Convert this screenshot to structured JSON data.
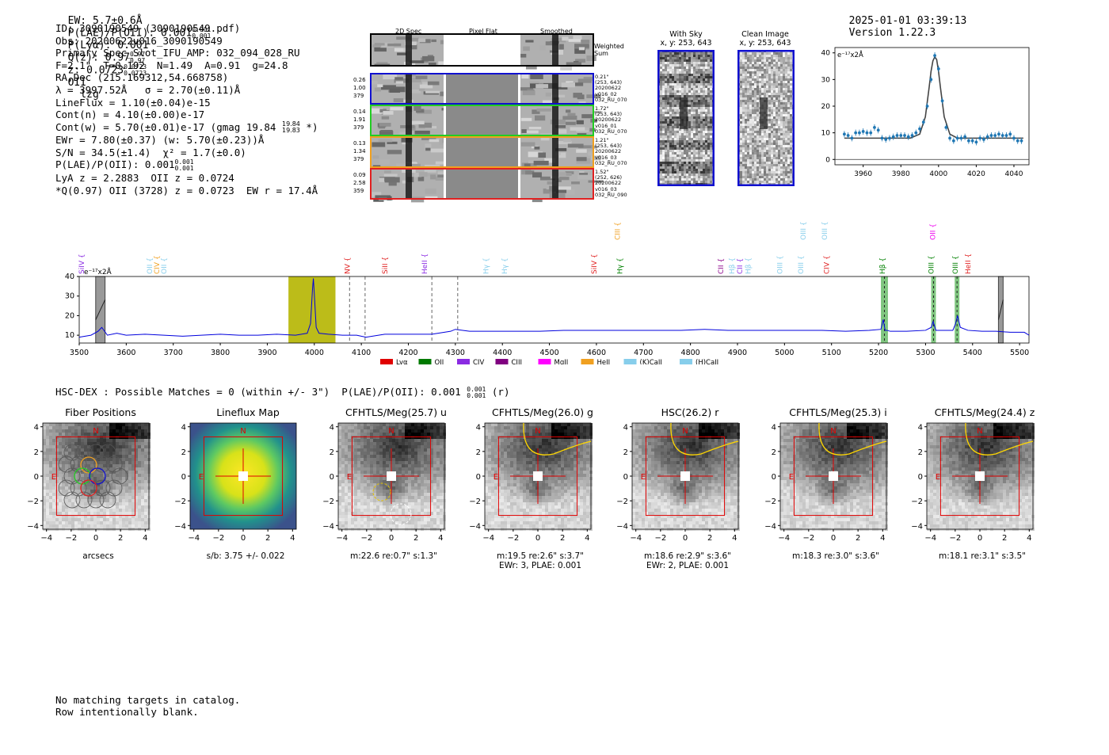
{
  "header": {
    "ew": "EW: 5.7±0.6Å",
    "plae": "P(LAE)/P(OII): 0.001",
    "plae_hi": "0.001",
    "plae_lo": "0.001",
    "plya": "P(Lyα): 0.001",
    "qz": "Q(z): 0.97",
    "qz_hi": "0.97",
    "qz_lo": "0.97",
    "z": "z: 0.0723",
    "z_hi": "0.0723",
    "z_lo": "0.0723",
    "z_line": "OII",
    "user": "lzg",
    "timestamp": "2025-01-01 03:39:13",
    "version": "Version 1.22.3"
  },
  "info": {
    "lines": [
      "ID: 3090190549 (3090190549.pdf)",
      "Obs: 20200622v016_3090190549",
      "Primary Spec_Slot_IFU_AMP: 032_094_028_RU",
      "F=2.1\"  T=0.192  N=1.49  A=0.91  g=24.8",
      "RA,Dec (215.169312,54.668758)",
      "λ = 3997.52Å   σ = 2.70(±0.11)Å",
      "LineFlux = 1.10(±0.04)e-15",
      "Cont(n) = 4.10(±0.00)e-17",
      "Cont(w) = 5.70(±0.01)e-17 (gmag 19.84",
      "EWr = 7.80(±0.37) (w: 5.70(±0.23))Å",
      "S/N = 34.5(±1.4)  χ² = 1.7(±0.0)",
      "P(LAE)/P(OII): 0.001",
      "LyA z = 2.2883  OII z = 0.0724",
      "*Q(0.97) OII (3728) z = 0.0723  EW r = 17.4Å"
    ],
    "gmag_hi": "19.84",
    "gmag_lo": "19.83",
    "gmag_close": "*)",
    "plae_hi": "0.001",
    "plae_lo": "0.001"
  },
  "fiber_panel": {
    "col_headers": [
      "2D Spec",
      "Pixel Flat",
      "Smoothed"
    ],
    "weighted_sum_label": "Weighted\nSum",
    "rows": [
      {
        "left": [
          "0.26",
          "1.00",
          "379"
        ],
        "right": [
          "0.21\"",
          "(253, 643)",
          "20200622",
          "v016_02",
          "032_RU_070"
        ],
        "color": "#1010d0"
      },
      {
        "left": [
          "0.14",
          "1.91",
          "379"
        ],
        "right": [
          "1.72\"",
          "(253, 643)",
          "20200622",
          "v016_01",
          "032_RU_070"
        ],
        "color": "#22cc22"
      },
      {
        "left": [
          "0.13",
          "1.34",
          "379"
        ],
        "right": [
          "1.21\"",
          "(253, 643)",
          "20200622",
          "v016_03",
          "032_RU_070"
        ],
        "color": "#f0a020"
      },
      {
        "left": [
          "0.09",
          "2.58",
          "359"
        ],
        "right": [
          "1.52\"",
          "(252, 626)",
          "20200622",
          "v016_03",
          "032_RU_090"
        ],
        "color": "#e02020"
      }
    ]
  },
  "sky_panels": {
    "with_sky": {
      "title": "With Sky",
      "coords": "x, y: 253, 643"
    },
    "clean": {
      "title": "Clean Image",
      "coords": "x, y: 253, 643"
    }
  },
  "line_fit": {
    "ylabel": "e⁻¹⁷x2Å",
    "x_ticks": [
      "3960",
      "3980",
      "4000",
      "4020",
      "4040"
    ],
    "y_ticks": [
      "0",
      "10",
      "20",
      "30",
      "40"
    ]
  },
  "spectrum": {
    "ylabel": "e⁻¹⁷x2Å",
    "x_ticks": [
      "3500",
      "3600",
      "3700",
      "3800",
      "3900",
      "4000",
      "4100",
      "4200",
      "4300",
      "4400",
      "4500",
      "4600",
      "4700",
      "4800",
      "4900",
      "5000",
      "5100",
      "5200",
      "5300",
      "5400",
      "5500"
    ],
    "y_ticks": [
      "10",
      "20",
      "30",
      "40"
    ],
    "line_labels": [
      {
        "text": "SiIV",
        "wl": 3510,
        "color": "#8a2be2",
        "row": 0
      },
      {
        "text": "OII",
        "wl": 3655,
        "color": "#87ceeb",
        "row": 0
      },
      {
        "text": "CIV",
        "wl": 3670,
        "color": "#f0a020",
        "row": 0
      },
      {
        "text": "OII",
        "wl": 3685,
        "color": "#87ceeb",
        "row": 0
      },
      {
        "text": "NV",
        "wl": 4075,
        "color": "#e02020",
        "row": 0
      },
      {
        "text": "SiII",
        "wl": 4155,
        "color": "#e02020",
        "row": 0
      },
      {
        "text": "HeII",
        "wl": 4240,
        "color": "#8a2be2",
        "row": 0
      },
      {
        "text": "Hγ",
        "wl": 4370,
        "color": "#87ceeb",
        "row": 0
      },
      {
        "text": "Hγ",
        "wl": 4410,
        "color": "#87ceeb",
        "row": 0
      },
      {
        "text": "SiIV",
        "wl": 4600,
        "color": "#e02020",
        "row": 0
      },
      {
        "text": "CIII",
        "wl": 4650,
        "color": "#f0a020",
        "row": 1
      },
      {
        "text": "Hγ",
        "wl": 4655,
        "color": "#008000",
        "row": 0
      },
      {
        "text": "CII",
        "wl": 4870,
        "color": "#8a008a",
        "row": 0
      },
      {
        "text": "Hβ",
        "wl": 4893,
        "color": "#87ceeb",
        "row": 0
      },
      {
        "text": "CII",
        "wl": 4910,
        "color": "#8a2be2",
        "row": 0
      },
      {
        "text": "Hβ",
        "wl": 4928,
        "color": "#87ceeb",
        "row": 0
      },
      {
        "text": "OIII",
        "wl": 4995,
        "color": "#87ceeb",
        "row": 0
      },
      {
        "text": "OIII",
        "wl": 5040,
        "color": "#87ceeb",
        "row": 0
      },
      {
        "text": "OIII",
        "wl": 5045,
        "color": "#87ceeb",
        "row": 1
      },
      {
        "text": "OIII",
        "wl": 5090,
        "color": "#87ceeb",
        "row": 1
      },
      {
        "text": "CIV",
        "wl": 5095,
        "color": "#e02020",
        "row": 0
      },
      {
        "text": "Hβ",
        "wl": 5213,
        "color": "#008000",
        "row": 0
      },
      {
        "text": "OII",
        "wl": 5320,
        "color": "#ee00ee",
        "row": 1
      },
      {
        "text": "OIII",
        "wl": 5317,
        "color": "#008000",
        "row": 0
      },
      {
        "text": "OIII",
        "wl": 5368,
        "color": "#008000",
        "row": 0
      },
      {
        "text": "HeII",
        "wl": 5395,
        "color": "#e02020",
        "row": 0
      }
    ],
    "legend": [
      {
        "label": "Lyα",
        "color": "#e00000"
      },
      {
        "label": "OII",
        "color": "#007a00"
      },
      {
        "label": "CIV",
        "color": "#8a2be2"
      },
      {
        "label": "CIII",
        "color": "#800080"
      },
      {
        "label": "MgII",
        "color": "#ff00ff"
      },
      {
        "label": "HeII",
        "color": "#f0a020"
      },
      {
        "label": "(K)CaII",
        "color": "#87ceeb"
      },
      {
        "label": "(H)CaII",
        "color": "#87ceeb"
      }
    ]
  },
  "chart_data": [
    {
      "type": "line",
      "title": "",
      "xlabel": "",
      "ylabel": "e⁻¹⁷x2Å",
      "xlim": [
        3945,
        4048
      ],
      "ylim": [
        -2,
        42
      ],
      "series": [
        {
          "name": "data",
          "x": [
            3950,
            3952,
            3954,
            3956,
            3958,
            3960,
            3962,
            3964,
            3966,
            3968,
            3970,
            3972,
            3974,
            3976,
            3978,
            3980,
            3982,
            3984,
            3986,
            3988,
            3990,
            3992,
            3994,
            3996,
            3998,
            4000,
            4002,
            4004,
            4006,
            4008,
            4010,
            4012,
            4014,
            4016,
            4018,
            4020,
            4022,
            4024,
            4026,
            4028,
            4030,
            4032,
            4034,
            4036,
            4038,
            4040,
            4042,
            4044
          ],
          "y": [
            9.5,
            9,
            8,
            10,
            10,
            10.5,
            10,
            10,
            12,
            11,
            8,
            7.5,
            8,
            8.5,
            9,
            9,
            9,
            8.5,
            9,
            10,
            11.5,
            14,
            20,
            30,
            39,
            34,
            22,
            12,
            8,
            7,
            8,
            8,
            8.5,
            7,
            7,
            6.5,
            8,
            7.5,
            8.5,
            9,
            9,
            9.5,
            9,
            9,
            9.5,
            8,
            7,
            7
          ]
        },
        {
          "name": "fit",
          "x": [
            3950,
            3985,
            3990,
            3993,
            3995,
            3996,
            3997,
            3998,
            3999,
            4000,
            4001,
            4003,
            4006,
            4010,
            4045
          ],
          "y": [
            8,
            8,
            9.5,
            16,
            27,
            33,
            37,
            38.5,
            37.5,
            33,
            27,
            16,
            9.5,
            8,
            8
          ]
        }
      ]
    },
    {
      "type": "line",
      "title": "",
      "xlabel": "",
      "ylabel": "e⁻¹⁷x2Å",
      "xlim": [
        3500,
        5520
      ],
      "ylim": [
        6,
        40
      ],
      "series": [
        {
          "name": "spectrum",
          "x": [
            3500,
            3525,
            3540,
            3548,
            3560,
            3580,
            3600,
            3640,
            3680,
            3720,
            3760,
            3800,
            3840,
            3880,
            3920,
            3960,
            3985,
            3992,
            3996,
            3998,
            4000,
            4004,
            4010,
            4030,
            4060,
            4090,
            4110,
            4150,
            4200,
            4250,
            4290,
            4300,
            4330,
            4380,
            4430,
            4480,
            4530,
            4580,
            4630,
            4680,
            4730,
            4780,
            4830,
            4880,
            4930,
            4980,
            5030,
            5080,
            5130,
            5180,
            5205,
            5210,
            5214,
            5218,
            5225,
            5260,
            5300,
            5312,
            5316,
            5322,
            5340,
            5358,
            5364,
            5368,
            5374,
            5390,
            5420,
            5450,
            5480,
            5510,
            5520
          ],
          "y": [
            9,
            10,
            12,
            14,
            10,
            11,
            10,
            10.5,
            10,
            9.5,
            10,
            10.5,
            10,
            10,
            10.5,
            10,
            11,
            16,
            33,
            39,
            31,
            14,
            11,
            10.5,
            10,
            10,
            9,
            10.5,
            10.5,
            10.5,
            12,
            13,
            12,
            12,
            12,
            12,
            12.5,
            12.5,
            12.5,
            12.5,
            12.5,
            12.5,
            13,
            12.5,
            12.5,
            12.5,
            12.5,
            12.5,
            12,
            12.5,
            13,
            18,
            12.5,
            12.5,
            12,
            12,
            12.5,
            14,
            17,
            12.5,
            12.5,
            12.5,
            16,
            20,
            14,
            12.5,
            12,
            12,
            11.5,
            11.5,
            10
          ]
        }
      ]
    }
  ],
  "catalog": {
    "summary": "HSC-DEX : Possible Matches = 0 (within +/- 3\")  P(LAE)/P(OII): 0.001",
    "summary_hi": "0.001",
    "summary_lo": "0.001",
    "summary_tail": "(r)",
    "footer_lines": [
      "No matching targets in catalog.",
      "Row intentionally blank."
    ]
  },
  "cutouts": [
    {
      "title": "Fiber Positions",
      "cap1": "arcsecs",
      "cap2": "",
      "type": "fiber"
    },
    {
      "title": "Lineflux Map",
      "cap1": "s/b: 3.75 +/- 0.022",
      "cap2": "",
      "type": "lineflux"
    },
    {
      "title": "CFHTLS/Meg(25.7) u",
      "cap1": "m:22.6  re:0.7\"  s:1.3\"",
      "cap2": "",
      "type": "u"
    },
    {
      "title": "CFHTLS/Meg(26.0) g",
      "cap1": "m:19.5  re:2.6\"  s:3.7\"",
      "cap2": "EWr: 3, PLAE: 0.001",
      "type": "img"
    },
    {
      "title": "HSC(26.2) r",
      "cap1": "m:18.6  re:2.9\"  s:3.6\"",
      "cap2": "EWr: 2, PLAE: 0.001",
      "type": "img"
    },
    {
      "title": "CFHTLS/Meg(25.3) i",
      "cap1": "m:18.3  re:3.0\"  s:3.6\"",
      "cap2": "",
      "type": "img"
    },
    {
      "title": "CFHTLS/Meg(24.4) z",
      "cap1": "m:18.1  re:3.1\"  s:3.5\"",
      "cap2": "",
      "type": "img"
    }
  ],
  "cutout_axis": {
    "ticks": [
      "−4",
      "−2",
      "0",
      "2",
      "4"
    ],
    "north": "N",
    "east": "E"
  }
}
